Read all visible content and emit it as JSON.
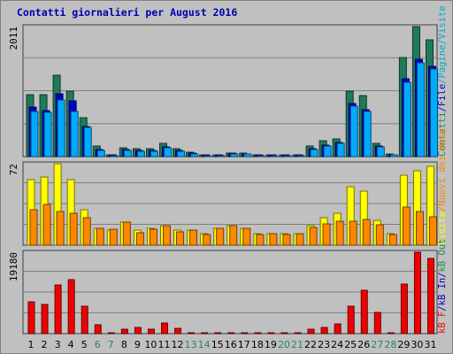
{
  "page": {
    "title": "Contatti giornalieri per August 2016"
  },
  "chart_data": [
    {
      "type": "bar",
      "panel": "top",
      "ymax_label": "2011",
      "ylim": [
        0,
        2011
      ],
      "categories": [
        "1",
        "2",
        "3",
        "4",
        "5",
        "6",
        "7",
        "8",
        "9",
        "10",
        "11",
        "12",
        "13",
        "14",
        "15",
        "16",
        "17",
        "18",
        "19",
        "20",
        "21",
        "22",
        "23",
        "24",
        "25",
        "26",
        "27",
        "28",
        "29",
        "30",
        "31"
      ],
      "weekend_days": [
        "6",
        "7",
        "13",
        "14",
        "20",
        "21",
        "27",
        "28"
      ],
      "right_labels": [
        {
          "text": "Contatti",
          "color": "#228855"
        },
        {
          "text": "File",
          "color": "#0000cc"
        },
        {
          "text": "Pagine",
          "color": "#00aacc"
        },
        {
          "text": "Visite",
          "color": "#00aacc"
        }
      ],
      "grid": true,
      "series": [
        {
          "name": "Contatti",
          "color": "#1e7a5a",
          "values": [
            960,
            960,
            1260,
            1010,
            600,
            160,
            30,
            140,
            120,
            120,
            200,
            120,
            70,
            30,
            30,
            60,
            50,
            30,
            30,
            30,
            30,
            160,
            240,
            280,
            1010,
            940,
            210,
            40,
            1530,
            2011,
            1800
          ]
        },
        {
          "name": "File",
          "color": "#0000cc",
          "values": [
            760,
            710,
            970,
            860,
            470,
            110,
            25,
            110,
            90,
            90,
            150,
            90,
            50,
            25,
            25,
            50,
            40,
            25,
            25,
            25,
            25,
            120,
            180,
            220,
            820,
            720,
            160,
            30,
            1210,
            1500,
            1400
          ]
        },
        {
          "name": "Pagine",
          "color": "#00aaff",
          "values": [
            700,
            680,
            880,
            700,
            450,
            100,
            20,
            100,
            85,
            85,
            140,
            85,
            45,
            20,
            20,
            45,
            35,
            20,
            20,
            20,
            20,
            110,
            170,
            200,
            780,
            700,
            150,
            25,
            1150,
            1450,
            1350
          ]
        }
      ]
    },
    {
      "type": "bar",
      "panel": "middle",
      "ymax_label": "72",
      "ylim": [
        0,
        72
      ],
      "categories": [
        "1",
        "2",
        "3",
        "4",
        "5",
        "6",
        "7",
        "8",
        "9",
        "10",
        "11",
        "12",
        "13",
        "14",
        "15",
        "16",
        "17",
        "18",
        "19",
        "20",
        "21",
        "22",
        "23",
        "24",
        "25",
        "26",
        "27",
        "28",
        "29",
        "30",
        "31"
      ],
      "right_labels": [
        {
          "text": "Visite",
          "color": "#ffff00"
        },
        {
          "text": "Nuovi dei Host",
          "color": "#ff8800"
        }
      ],
      "grid": true,
      "series": [
        {
          "name": "Visite",
          "color": "#ffff00",
          "values": [
            58,
            60,
            72,
            58,
            31,
            15,
            13,
            20,
            13,
            15,
            17,
            13,
            13,
            10,
            15,
            17,
            15,
            10,
            10,
            10,
            10,
            17,
            24,
            28,
            52,
            48,
            22,
            10,
            62,
            66,
            70
          ]
        },
        {
          "name": "Nuovi dei Host",
          "color": "#ff8800",
          "values": [
            31,
            36,
            30,
            28,
            24,
            15,
            14,
            20,
            11,
            14,
            17,
            12,
            13,
            9,
            15,
            17,
            15,
            9,
            10,
            9,
            10,
            16,
            19,
            21,
            21,
            23,
            18,
            9,
            34,
            30,
            25
          ]
        }
      ]
    },
    {
      "type": "bar",
      "panel": "bottom",
      "ymax_label": "19180",
      "ylim": [
        0,
        19180
      ],
      "categories": [
        "1",
        "2",
        "3",
        "4",
        "5",
        "6",
        "7",
        "8",
        "9",
        "10",
        "11",
        "12",
        "13",
        "14",
        "15",
        "16",
        "17",
        "18",
        "19",
        "20",
        "21",
        "22",
        "23",
        "24",
        "25",
        "26",
        "27",
        "28",
        "29",
        "30",
        "31"
      ],
      "right_labels": [
        {
          "text": "kB F",
          "color": "#ff0000"
        },
        {
          "text": "/",
          "color": "#0000cc"
        },
        {
          "text": "kB In",
          "color": "#0000cc"
        },
        {
          "text": "/",
          "color": "#0000cc"
        },
        {
          "text": "kB Out",
          "color": "#228855"
        }
      ],
      "grid": true,
      "series": [
        {
          "name": "kB F",
          "color": "#ee0000",
          "values": [
            7600,
            6800,
            11400,
            12800,
            6500,
            2100,
            200,
            1000,
            1400,
            1000,
            2400,
            1200,
            200,
            200,
            200,
            200,
            200,
            200,
            200,
            200,
            200,
            1100,
            1400,
            2200,
            6500,
            10200,
            5000,
            300,
            11600,
            19180,
            17700
          ]
        }
      ]
    }
  ]
}
